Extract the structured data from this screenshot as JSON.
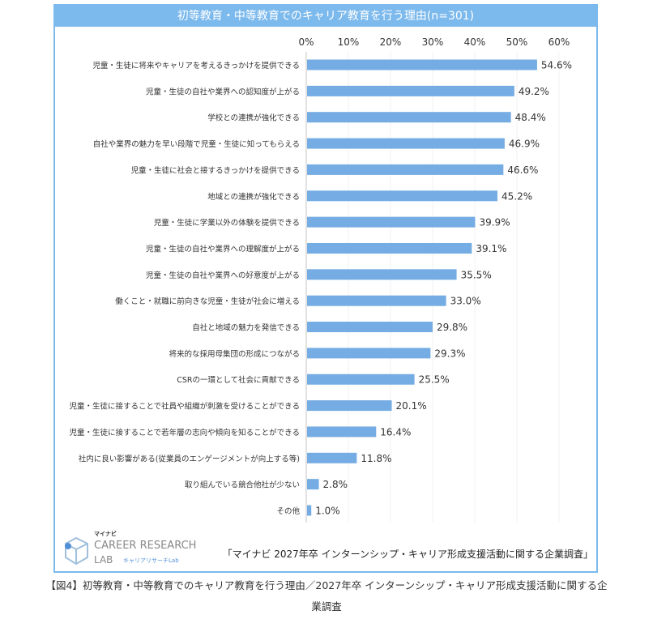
{
  "chart_data": {
    "type": "bar",
    "orientation": "horizontal",
    "title": "初等教育・中等教育でのキャリア教育を行う理由(n=301)",
    "xlim": [
      0,
      60
    ],
    "ticks": [
      "0%",
      "10%",
      "20%",
      "30%",
      "40%",
      "50%",
      "60%"
    ],
    "categories": [
      "児童・生徒に将来やキャリアを考えるきっかけを提供できる",
      "児童・生徒の自社や業界への認知度が上がる",
      "学校との連携が強化できる",
      "自社や業界の魅力を早い段階で児童・生徒に知ってもらえる",
      "児童・生徒に社会と接するきっかけを提供できる",
      "地域との連携が強化できる",
      "児童・生徒に学業以外の体験を提供できる",
      "児童・生徒の自社や業界への理解度が上がる",
      "児童・生徒の自社や業界への好意度が上がる",
      "働くこと・就職に前向きな児童・生徒が社会に増える",
      "自社と地域の魅力を発信できる",
      "将来的な採用母集団の形成につながる",
      "CSRの一環として社会に貢献できる",
      "児童・生徒に接することで社員や組織が刺激を受けることができる",
      "児童・生徒に接することで若年層の志向や傾向を知ることができる",
      "社内に良い影響がある(従業員のエンゲージメントが向上する等)",
      "取り組んでいる競合他社が少ない",
      "その他"
    ],
    "values": [
      54.6,
      49.2,
      48.4,
      46.9,
      46.6,
      45.2,
      39.9,
      39.1,
      35.5,
      33.0,
      29.8,
      29.3,
      25.5,
      20.1,
      16.4,
      11.8,
      2.8,
      1.0
    ],
    "value_labels": [
      "54.6%",
      "49.2%",
      "48.4%",
      "46.9%",
      "46.6%",
      "45.2%",
      "39.9%",
      "39.1%",
      "35.5%",
      "33.0%",
      "29.8%",
      "29.3%",
      "25.5%",
      "20.1%",
      "16.4%",
      "11.8%",
      "2.8%",
      "1.0%"
    ],
    "bar_color": "#74ace3"
  },
  "logo": {
    "brand": "マイナビ",
    "name1": "CAREER RESEARCH",
    "name2": "LAB",
    "sub": "キャリアリサーチLab"
  },
  "source": "「マイナビ 2027年卒 インターンシップ・キャリア形成支援活動に関する企業調査」",
  "caption": "【図4】初等教育・中等教育でのキャリア教育を行う理由／2027年卒 インターンシップ・キャリア形成支援活動に関する企業調査"
}
